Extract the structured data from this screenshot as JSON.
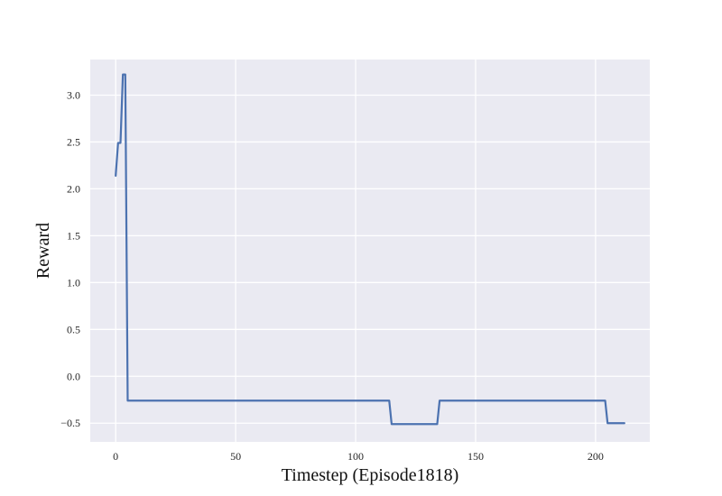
{
  "chart_data": {
    "type": "line",
    "title": "",
    "xlabel": "Timestep (Episode1818)",
    "ylabel": "Reward",
    "xlim": [
      -10.6,
      222.6
    ],
    "ylim": [
      -0.7,
      3.38
    ],
    "grid": true,
    "x_ticks": [
      0,
      50,
      100,
      150,
      200
    ],
    "x_tick_labels": [
      "0",
      "50",
      "100",
      "150",
      "200"
    ],
    "y_ticks": [
      -0.5,
      0.0,
      0.5,
      1.0,
      1.5,
      2.0,
      2.5,
      3.0
    ],
    "y_tick_labels": [
      "−0.5",
      "0.0",
      "0.5",
      "1.0",
      "1.5",
      "2.0",
      "2.5",
      "3.0"
    ],
    "series": [
      {
        "color": "#4c72b0",
        "x": [
          0,
          1,
          2,
          3,
          4,
          5,
          114,
          115,
          134,
          135,
          204,
          205,
          212
        ],
        "y": [
          2.14,
          2.49,
          2.49,
          3.22,
          3.22,
          -0.26,
          -0.26,
          -0.51,
          -0.51,
          -0.26,
          -0.26,
          -0.5,
          -0.5
        ]
      }
    ]
  },
  "colors": {
    "plot_background": "#eaeaf2",
    "grid": "#ffffff",
    "line": "#4c72b0"
  }
}
